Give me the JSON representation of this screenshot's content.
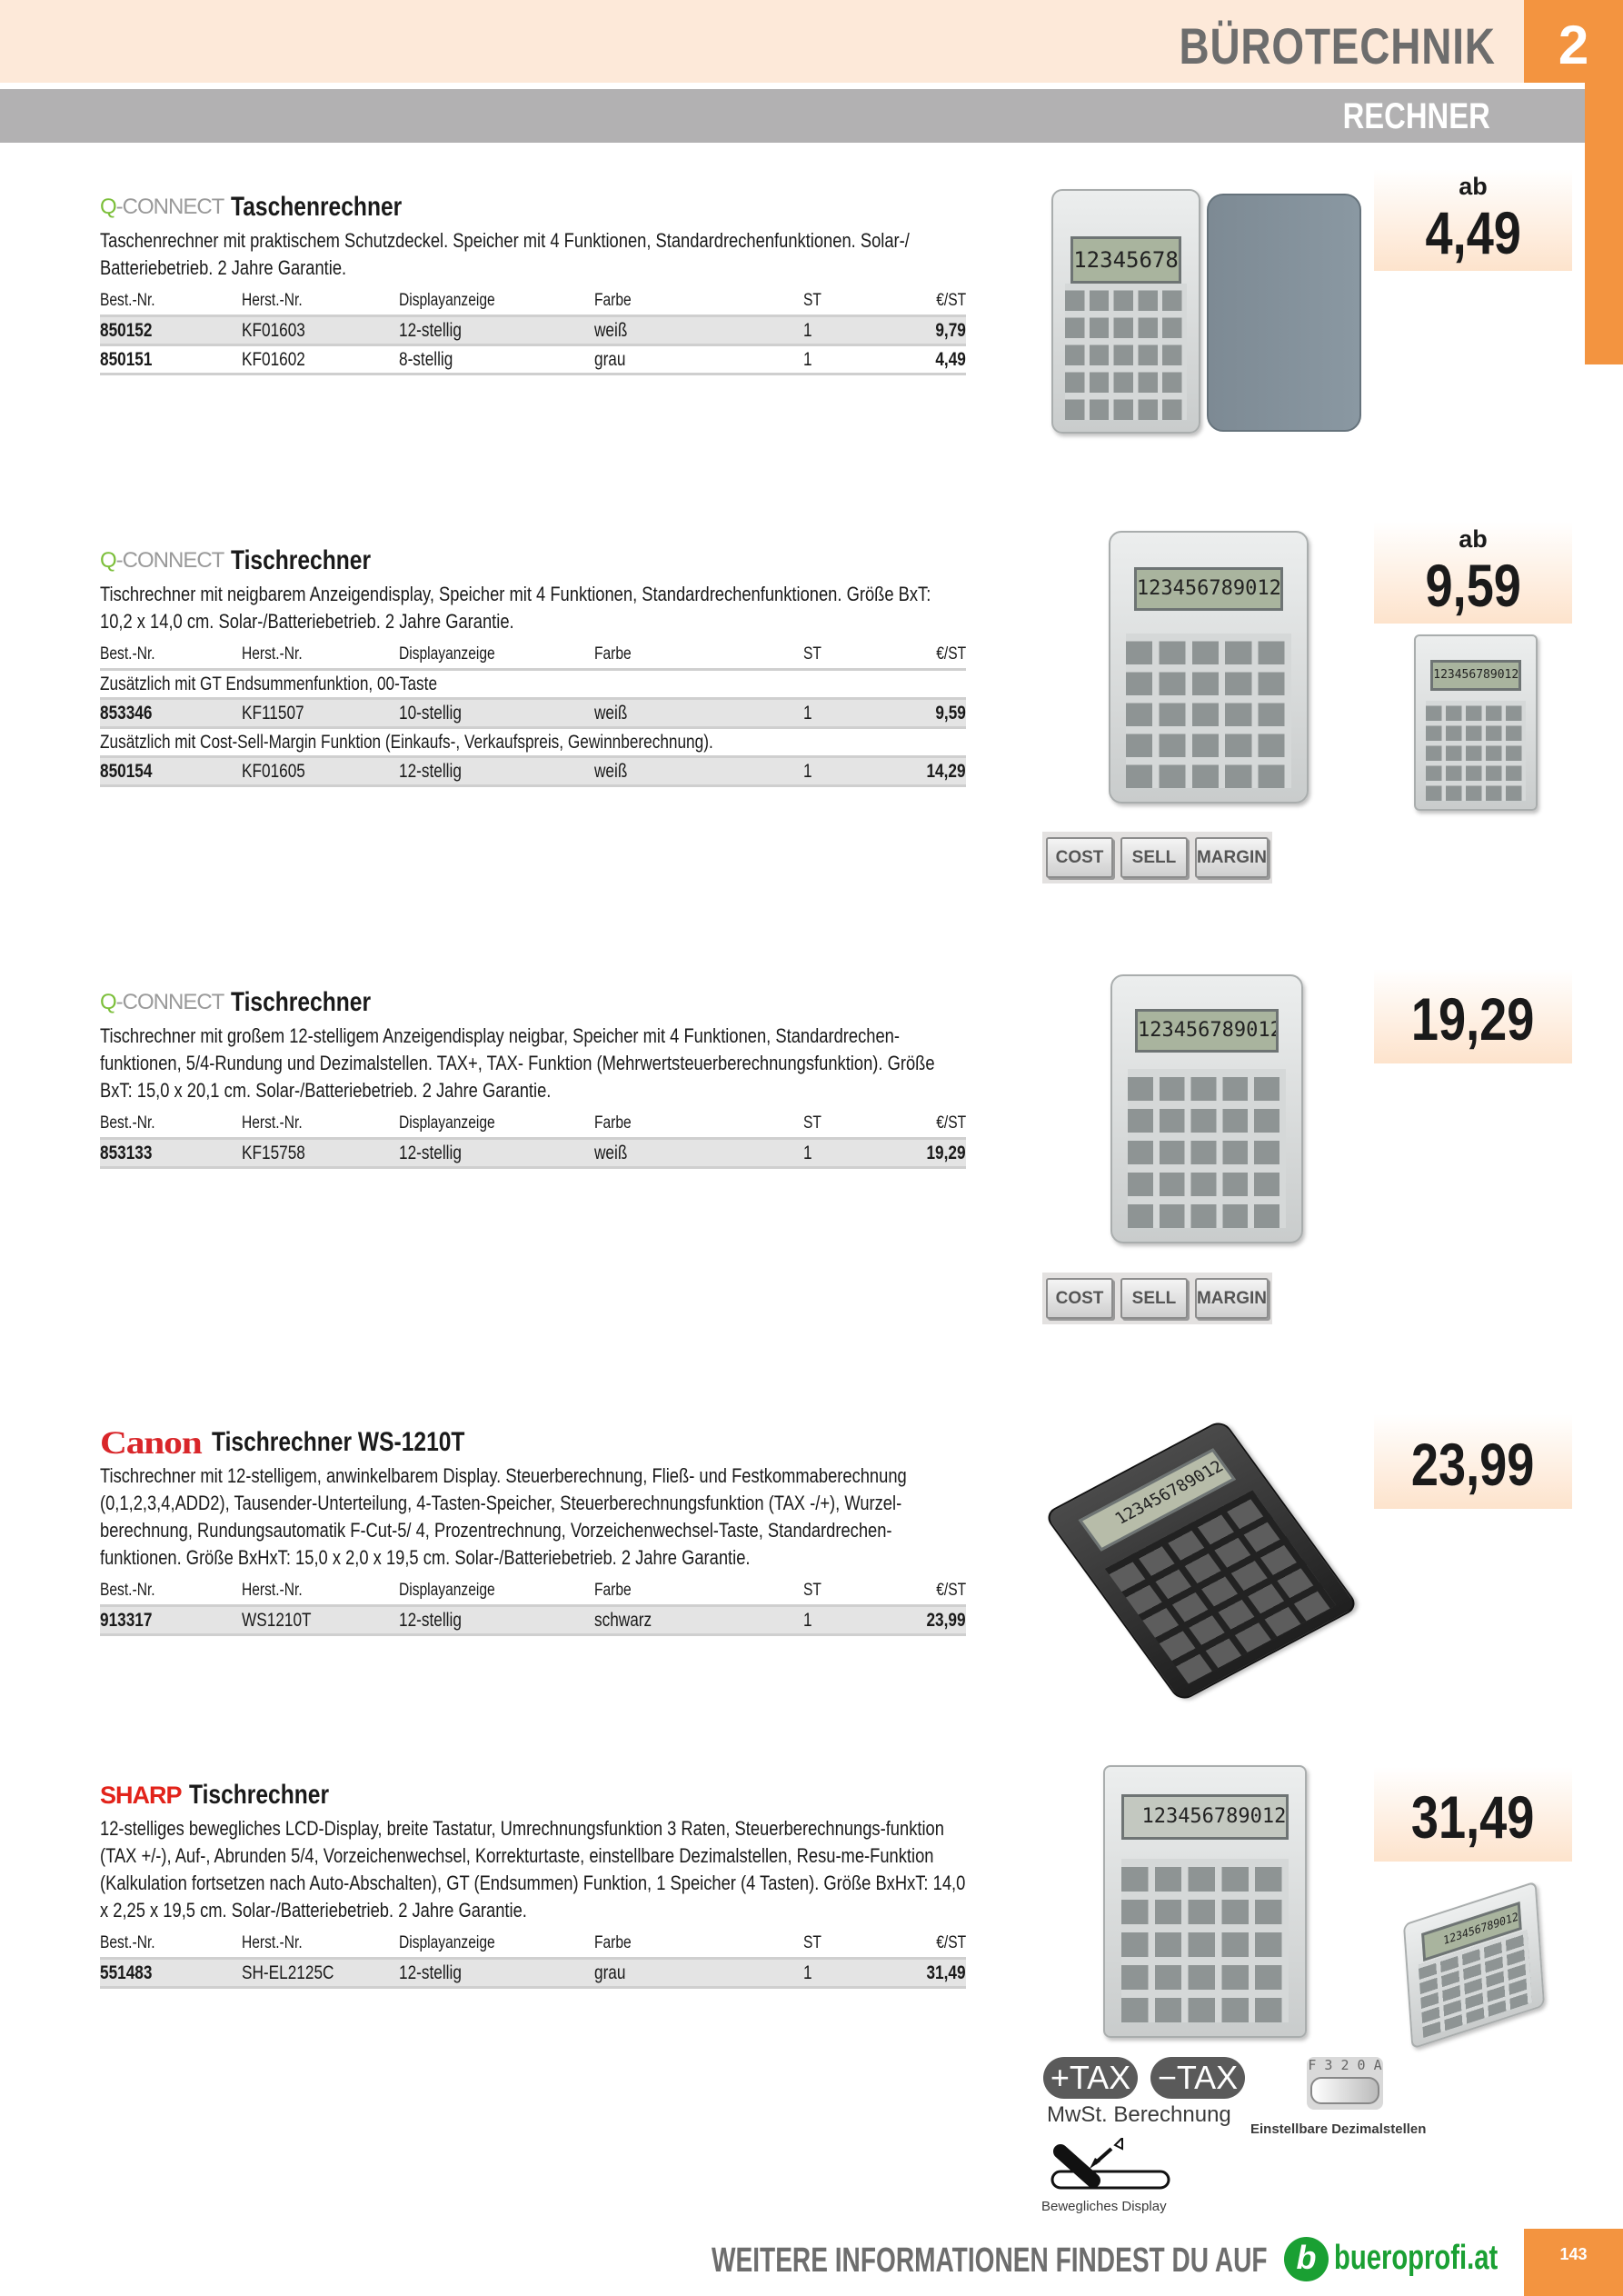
{
  "header": {
    "category": "BÜROTECHNIK",
    "chapter": "2",
    "subcategory": "RECHNER"
  },
  "colors": {
    "accent": "#f39440",
    "header_bg": "#fde9d9",
    "subheader_bg": "#b2b1b2",
    "brand_green": "#1aa033"
  },
  "table_headers": {
    "best": "Best.-Nr.",
    "herst": "Herst.-Nr.",
    "display": "Displayanzeige",
    "farbe": "Farbe",
    "st": "ST",
    "price": "€/ST"
  },
  "products": [
    {
      "brand": "Q-CONNECT",
      "title": "Taschenrechner",
      "description": "Taschenrechner mit praktischem Schutzdeckel. Speicher mit 4 Funktionen, Standardrechenfunktionen. Solar-/ Batteriebetrieb. 2 Jahre Garantie.",
      "price_prefix": "ab",
      "price": "4,49",
      "rows": [
        {
          "best": "850152",
          "herst": "KF01603",
          "display": "12-stellig",
          "farbe": "weiß",
          "st": "1",
          "price": "9,79"
        },
        {
          "best": "850151",
          "herst": "KF01602",
          "display": "8-stellig",
          "farbe": "grau",
          "st": "1",
          "price": "4,49"
        }
      ],
      "display_digits": "12345678"
    },
    {
      "brand": "Q-CONNECT",
      "title": "Tischrechner",
      "description": "Tischrechner mit neigbarem Anzeigendisplay, Speicher mit 4 Funktionen, Standardrechenfunktionen. Größe BxT: 10,2 x 14,0 cm. Solar-/Batteriebetrieb. 2 Jahre Garantie.",
      "price_prefix": "ab",
      "price": "9,59",
      "notes": [
        "Zusätzlich mit GT Endsummenfunktion, 00-Taste",
        "Zusätzlich mit Cost-Sell-Margin Funktion (Einkaufs-, Verkaufspreis, Gewinnberechnung)."
      ],
      "rows": [
        {
          "best": "853346",
          "herst": "KF11507",
          "display": "10-stellig",
          "farbe": "weiß",
          "st": "1",
          "price": "9,59"
        },
        {
          "best": "850154",
          "herst": "KF01605",
          "display": "12-stellig",
          "farbe": "weiß",
          "st": "1",
          "price": "14,29"
        }
      ],
      "display_digits": "123456789012",
      "key_labels": [
        "COST",
        "SELL",
        "MARGIN"
      ]
    },
    {
      "brand": "Q-CONNECT",
      "title": "Tischrechner",
      "description": "Tischrechner mit großem 12-stelligem Anzeigendisplay neigbar, Speicher mit 4 Funktionen, Standardrechen-funktionen, 5/4-Rundung und Dezimalstellen. TAX+, TAX- Funktion (Mehrwertsteuerberechnungsfunktion). Größe BxT: 15,0 x 20,1 cm. Solar-/Batteriebetrieb. 2 Jahre Garantie.",
      "price": "19,29",
      "rows": [
        {
          "best": "853133",
          "herst": "KF15758",
          "display": "12-stellig",
          "farbe": "weiß",
          "st": "1",
          "price": "19,29"
        }
      ],
      "display_digits": "123456789012",
      "key_labels": [
        "COST",
        "SELL",
        "MARGIN"
      ]
    },
    {
      "brand": "Canon",
      "title": "Tischrechner WS-1210T",
      "description": "Tischrechner mit 12-stelligem, anwinkelbarem Display. Steuerberechnung, Fließ- und Festkommaberechnung (0,1,2,3,4,ADD2), Tausender-Unterteilung, 4-Tasten-Speicher, Steuerberechnungsfunktion (TAX -/+), Wurzel-berechnung, Rundungsautomatik F-Cut-5/ 4, Prozentrechnung, Vorzeichenwechsel-Taste, Standardrechen-funktionen. Größe BxHxT: 15,0 x 2,0 x 19,5 cm. Solar-/Batteriebetrieb. 2 Jahre Garantie.",
      "price": "23,99",
      "rows": [
        {
          "best": "913317",
          "herst": "WS1210T",
          "display": "12-stellig",
          "farbe": "schwarz",
          "st": "1",
          "price": "23,99"
        }
      ],
      "display_digits": "123456789012"
    },
    {
      "brand": "SHARP",
      "title": "Tischrechner",
      "description": "12-stelliges bewegliches LCD-Display, breite Tastatur, Umrechnungsfunktion 3 Raten, Steuerberechnungs-funktion (TAX +/-), Auf-, Abrunden 5/4, Vorzeichenwechsel, Korrekturtaste, einstellbare Dezimalstellen, Resu-me-Funktion (Kalkulation fortsetzen nach Auto-Abschalten), GT (Endsummen) Funktion, 1 Speicher (4 Tasten). Größe BxHxT: 14,0 x 2,25 x 19,5 cm. Solar-/Batteriebetrieb. 2 Jahre Garantie.",
      "price": "31,49",
      "rows": [
        {
          "best": "551483",
          "herst": "SH-EL2125C",
          "display": "12-stellig",
          "farbe": "grau",
          "st": "1",
          "price": "31,49"
        }
      ],
      "display_digits": "123456789012",
      "features": {
        "tax_plus": "+TAX",
        "tax_minus": "−TAX",
        "tax_caption": "MwSt. Berechnung",
        "decimal_switch": "F 3 2 0 A",
        "decimal_caption": "Einstellbare Dezimalstellen",
        "display_caption": "Bewegliches Display"
      }
    }
  ],
  "footer": {
    "text": "WEITERE INFORMATIONEN FINDEST DU AUF",
    "logo_letter": "b",
    "site": "bueroprofi.at",
    "page": "143"
  }
}
